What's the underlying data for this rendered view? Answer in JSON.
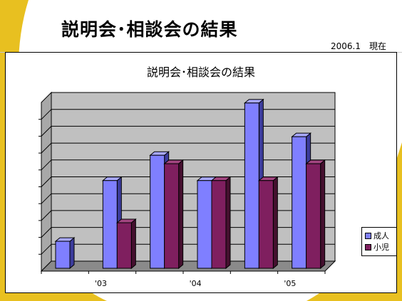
{
  "slide": {
    "title": "説明会･相談会の結果",
    "date_note": "2006.1　現在"
  },
  "colors": {
    "accent_yellow": "#e8c020",
    "adult": "#7f7fff",
    "adult_side": "#3c3c9c",
    "child": "#7f1f5f",
    "child_side": "#45102f",
    "plot_bg": "#c0c0c0",
    "floor": "#8a8a8a"
  },
  "chart_data": {
    "type": "bar",
    "title": "説明会･相談会の結果",
    "xlabel": "",
    "ylabel": "",
    "categories": [
      "",
      "'03",
      "",
      "'04",
      "",
      "'05"
    ],
    "series": [
      {
        "name": "成人",
        "values": [
          1.6,
          5.2,
          6.7,
          5.2,
          9.8,
          7.8
        ]
      },
      {
        "name": "小児",
        "values": [
          0,
          2.7,
          6.2,
          5.2,
          5.2,
          6.2
        ]
      }
    ],
    "ylim": [
      0,
      10
    ],
    "gridlines": 10,
    "grid": true,
    "legend_position": "right"
  }
}
